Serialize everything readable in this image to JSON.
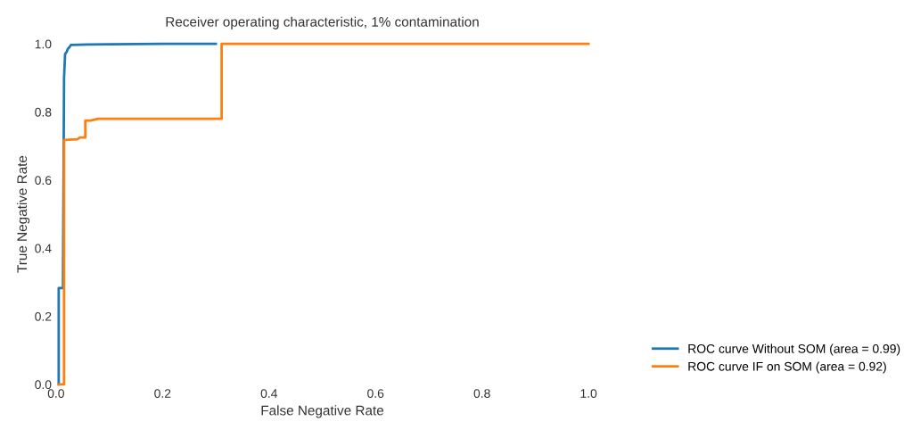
{
  "chart_data": {
    "type": "line",
    "title": "Receiver operating characteristic, 1% contamination",
    "xlabel": "False Negative Rate",
    "ylabel": "True Negative Rate",
    "xlim": [
      0,
      1
    ],
    "ylim": [
      0,
      1
    ],
    "xticks": [
      {
        "value": 0,
        "label": "0.0"
      },
      0.2,
      0.4,
      0.6,
      0.8,
      {
        "value": 1,
        "label": "1.0"
      }
    ],
    "yticks": [
      {
        "value": 0,
        "label": "0.0"
      },
      0.2,
      0.4,
      0.6,
      0.8,
      {
        "value": 1,
        "label": "1.0"
      }
    ],
    "grid": false,
    "legend": "bottom right",
    "line_style": "solid",
    "marker": "none",
    "series": [
      {
        "name": "ROC curve Without SOM (area = 0.99)",
        "color": "#1f77b4",
        "x": [
          0.005,
          0.005,
          0.013,
          0.015,
          0.017,
          0.02,
          0.022,
          0.025,
          0.028,
          0.06,
          0.1,
          0.2,
          0.3
        ],
        "values": [
          0.0,
          0.283,
          0.283,
          0.9,
          0.97,
          0.977,
          0.985,
          0.99,
          0.997,
          0.998,
          0.999,
          1.0,
          1.0
        ]
      },
      {
        "name": "ROC curve IF on SOM (area = 0.92)",
        "color": "#ff7f0e",
        "x": [
          0.005,
          0.015,
          0.015,
          0.04,
          0.045,
          0.055,
          0.055,
          0.065,
          0.079,
          0.311,
          0.311,
          0.5,
          0.7,
          1.0
        ],
        "values": [
          0.0,
          0.0,
          0.718,
          0.72,
          0.725,
          0.725,
          0.775,
          0.775,
          0.78,
          0.78,
          1.0,
          1.0,
          1.0,
          1.0
        ]
      }
    ]
  }
}
